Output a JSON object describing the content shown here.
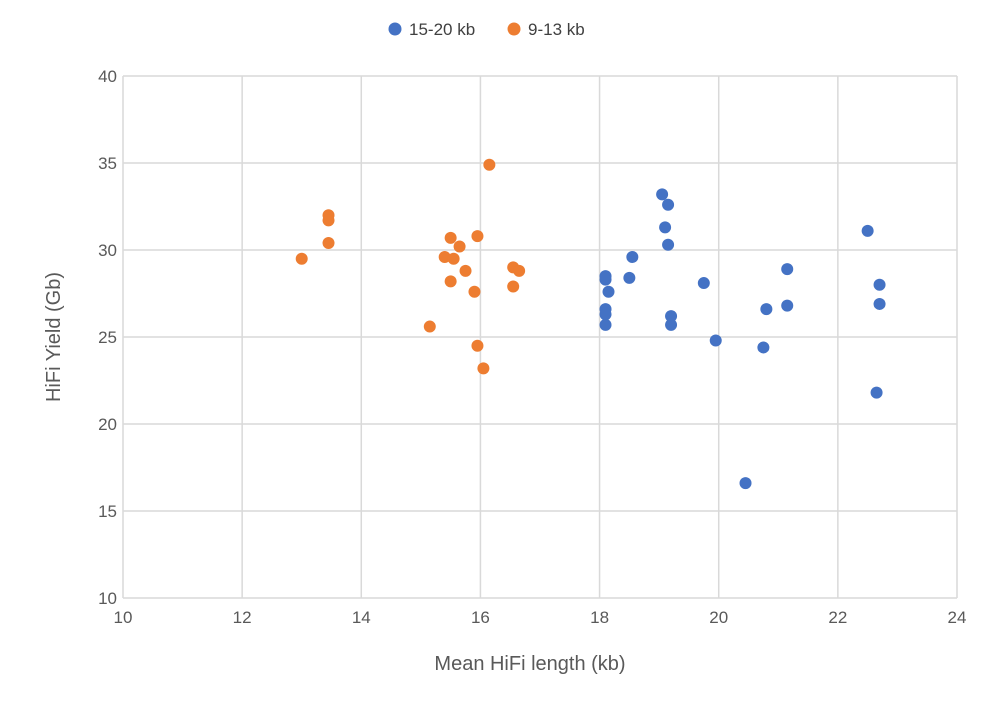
{
  "chart_data": {
    "type": "scatter",
    "title": "",
    "xlabel": "Mean HiFi length (kb)",
    "ylabel": "HiFi Yield (Gb)",
    "xlim": [
      10,
      24
    ],
    "ylim": [
      10,
      40
    ],
    "xticks": [
      10,
      12,
      14,
      16,
      18,
      20,
      22,
      24
    ],
    "yticks": [
      10,
      15,
      20,
      25,
      30,
      35,
      40
    ],
    "grid": true,
    "legend_position": "top",
    "series": [
      {
        "name": "15-20 kb",
        "color": "#4472C4",
        "points": [
          [
            18.1,
            28.5
          ],
          [
            18.1,
            28.3
          ],
          [
            18.15,
            27.6
          ],
          [
            18.5,
            28.4
          ],
          [
            18.55,
            29.6
          ],
          [
            18.1,
            26.6
          ],
          [
            18.1,
            26.3
          ],
          [
            18.1,
            25.7
          ],
          [
            19.05,
            33.2
          ],
          [
            19.15,
            32.6
          ],
          [
            19.1,
            31.3
          ],
          [
            19.15,
            30.3
          ],
          [
            19.2,
            26.2
          ],
          [
            19.2,
            25.7
          ],
          [
            19.75,
            28.1
          ],
          [
            19.95,
            24.8
          ],
          [
            20.45,
            16.6
          ],
          [
            20.75,
            24.4
          ],
          [
            20.8,
            26.6
          ],
          [
            21.15,
            28.9
          ],
          [
            21.15,
            26.8
          ],
          [
            22.5,
            31.1
          ],
          [
            22.7,
            28.0
          ],
          [
            22.7,
            26.9
          ],
          [
            22.65,
            21.8
          ]
        ]
      },
      {
        "name": "9-13 kb",
        "color": "#ED7D31",
        "points": [
          [
            13.0,
            29.5
          ],
          [
            13.45,
            32.0
          ],
          [
            13.45,
            31.7
          ],
          [
            13.45,
            30.4
          ],
          [
            15.15,
            25.6
          ],
          [
            15.4,
            29.6
          ],
          [
            15.5,
            30.7
          ],
          [
            15.55,
            29.5
          ],
          [
            15.5,
            28.2
          ],
          [
            15.65,
            30.2
          ],
          [
            15.75,
            28.8
          ],
          [
            15.9,
            27.6
          ],
          [
            15.95,
            30.8
          ],
          [
            15.95,
            24.5
          ],
          [
            16.05,
            23.2
          ],
          [
            16.15,
            34.9
          ],
          [
            16.55,
            29.0
          ],
          [
            16.65,
            28.8
          ],
          [
            16.55,
            27.9
          ]
        ]
      }
    ]
  }
}
